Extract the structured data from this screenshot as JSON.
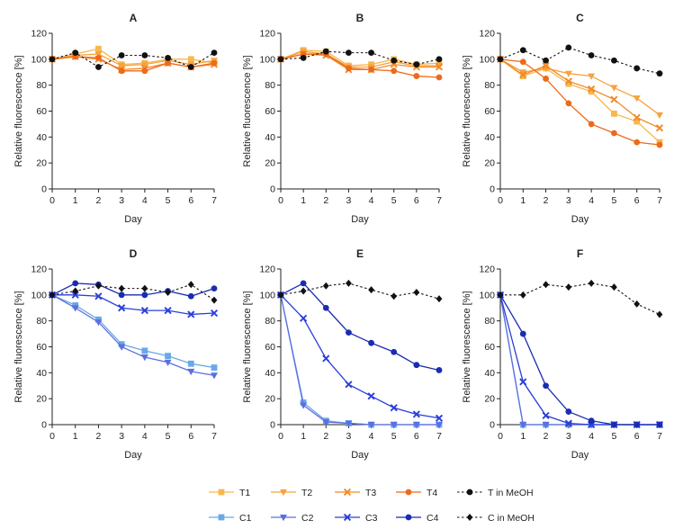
{
  "figure": {
    "xlabel": "Day",
    "ylabel": "Relative fluorescence [%]",
    "x_ticks": [
      "0",
      "1",
      "2",
      "3",
      "4",
      "5",
      "6",
      "7"
    ],
    "y_ticks": [
      "0",
      "20",
      "40",
      "60",
      "80",
      "100",
      "120"
    ]
  },
  "legend": {
    "placement": "bottom-center",
    "items": [
      {
        "key": "T1",
        "label": "T1",
        "color": "#f7b84d",
        "marker": "square",
        "dash": false
      },
      {
        "key": "T2",
        "label": "T2",
        "color": "#f7a23c",
        "marker": "triangle-down",
        "dash": false
      },
      {
        "key": "T3",
        "label": "T3",
        "color": "#f2892a",
        "marker": "x",
        "dash": false
      },
      {
        "key": "T4",
        "label": "T4",
        "color": "#ee6a1b",
        "marker": "circle",
        "dash": false
      },
      {
        "key": "TM",
        "label": "T in MeOH",
        "color": "#111111",
        "marker": "circle",
        "dash": true
      },
      {
        "key": "C1",
        "label": "C1",
        "color": "#6aa8e8",
        "marker": "square",
        "dash": false
      },
      {
        "key": "C2",
        "label": "C2",
        "color": "#5b6fe0",
        "marker": "triangle-down",
        "dash": false
      },
      {
        "key": "C3",
        "label": "C3",
        "color": "#2a3fd8",
        "marker": "x",
        "dash": false
      },
      {
        "key": "C4",
        "label": "C4",
        "color": "#1a2cb0",
        "marker": "circle",
        "dash": false
      },
      {
        "key": "CM",
        "label": "C in MeOH",
        "color": "#111111",
        "marker": "diamond",
        "dash": true
      }
    ]
  },
  "chart_data": [
    {
      "type": "line",
      "title": "A",
      "xlabel": "Day",
      "ylabel": "Relative fluorescence [%]",
      "xlim": [
        0,
        7
      ],
      "ylim": [
        0,
        120
      ],
      "grid": false,
      "x": [
        0,
        1,
        2,
        3,
        4,
        5,
        6,
        7
      ],
      "series": [
        {
          "name": "T1",
          "values": [
            100,
            104,
            108,
            96,
            97,
            100,
            100,
            97
          ]
        },
        {
          "name": "T2",
          "values": [
            100,
            103,
            104,
            95,
            96,
            99,
            96,
            99
          ]
        },
        {
          "name": "T3",
          "values": [
            100,
            102,
            100,
            92,
            93,
            97,
            94,
            96
          ]
        },
        {
          "name": "T4",
          "values": [
            100,
            102,
            101,
            91,
            91,
            97,
            94,
            97
          ]
        },
        {
          "name": "T in MeOH",
          "values": [
            100,
            105,
            94,
            103,
            103,
            101,
            94,
            105
          ]
        }
      ]
    },
    {
      "type": "line",
      "title": "B",
      "xlabel": "Day",
      "ylabel": "Relative fluorescence [%]",
      "xlim": [
        0,
        7
      ],
      "ylim": [
        0,
        120
      ],
      "grid": false,
      "x": [
        0,
        1,
        2,
        3,
        4,
        5,
        6,
        7
      ],
      "series": [
        {
          "name": "T1",
          "values": [
            100,
            107,
            106,
            95,
            96,
            100,
            96,
            97
          ]
        },
        {
          "name": "T2",
          "values": [
            100,
            106,
            104,
            94,
            94,
            98,
            95,
            95
          ]
        },
        {
          "name": "T3",
          "values": [
            100,
            104,
            103,
            92,
            92,
            96,
            94,
            94
          ]
        },
        {
          "name": "T4",
          "values": [
            100,
            104,
            104,
            93,
            92,
            91,
            87,
            86
          ]
        },
        {
          "name": "T in MeOH",
          "values": [
            100,
            101,
            106,
            105,
            105,
            99,
            96,
            100
          ]
        }
      ]
    },
    {
      "type": "line",
      "title": "C",
      "xlabel": "Day",
      "ylabel": "Relative fluorescence [%]",
      "xlim": [
        0,
        7
      ],
      "ylim": [
        0,
        120
      ],
      "grid": false,
      "x": [
        0,
        1,
        2,
        3,
        4,
        5,
        6,
        7
      ],
      "series": [
        {
          "name": "T1",
          "values": [
            100,
            87,
            93,
            81,
            75,
            58,
            52,
            36
          ]
        },
        {
          "name": "T2",
          "values": [
            100,
            90,
            93,
            89,
            87,
            78,
            70,
            57
          ]
        },
        {
          "name": "T3",
          "values": [
            100,
            88,
            95,
            83,
            77,
            69,
            55,
            47
          ]
        },
        {
          "name": "T4",
          "values": [
            100,
            98,
            85,
            66,
            50,
            43,
            36,
            34
          ]
        },
        {
          "name": "T in MeOH",
          "values": [
            100,
            107,
            99,
            109,
            103,
            99,
            93,
            89
          ]
        }
      ]
    },
    {
      "type": "line",
      "title": "D",
      "xlabel": "Day",
      "ylabel": "Relative fluorescence [%]",
      "xlim": [
        0,
        7
      ],
      "ylim": [
        0,
        120
      ],
      "grid": false,
      "x": [
        0,
        1,
        2,
        3,
        4,
        5,
        6,
        7
      ],
      "series": [
        {
          "name": "C1",
          "values": [
            100,
            92,
            81,
            62,
            57,
            53,
            47,
            44
          ]
        },
        {
          "name": "C2",
          "values": [
            100,
            90,
            79,
            60,
            52,
            48,
            41,
            38
          ]
        },
        {
          "name": "C3",
          "values": [
            100,
            100,
            99,
            90,
            88,
            88,
            85,
            86
          ]
        },
        {
          "name": "C4",
          "values": [
            100,
            109,
            108,
            100,
            100,
            103,
            99,
            105
          ]
        },
        {
          "name": "C in MeOH",
          "values": [
            100,
            103,
            107,
            105,
            105,
            102,
            108,
            96
          ]
        }
      ]
    },
    {
      "type": "line",
      "title": "E",
      "xlabel": "Day",
      "ylabel": "Relative fluorescence [%]",
      "xlim": [
        0,
        7
      ],
      "ylim": [
        0,
        120
      ],
      "grid": false,
      "x": [
        0,
        1,
        2,
        3,
        4,
        5,
        6,
        7
      ],
      "series": [
        {
          "name": "C1",
          "values": [
            100,
            17,
            3,
            1,
            0,
            0,
            0,
            0
          ]
        },
        {
          "name": "C2",
          "values": [
            100,
            15,
            2,
            1,
            0,
            0,
            0,
            0
          ]
        },
        {
          "name": "C3",
          "values": [
            100,
            82,
            51,
            31,
            22,
            13,
            8,
            5
          ]
        },
        {
          "name": "C4",
          "values": [
            100,
            109,
            90,
            71,
            63,
            56,
            46,
            42
          ]
        },
        {
          "name": "C in MeOH",
          "values": [
            100,
            103,
            107,
            109,
            104,
            99,
            102,
            97
          ]
        }
      ]
    },
    {
      "type": "line",
      "title": "F",
      "xlabel": "Day",
      "ylabel": "Relative fluorescence [%]",
      "xlim": [
        0,
        7
      ],
      "ylim": [
        0,
        120
      ],
      "grid": false,
      "x": [
        0,
        1,
        2,
        3,
        4,
        5,
        6,
        7
      ],
      "series": [
        {
          "name": "C1",
          "values": [
            100,
            0,
            0,
            0,
            0,
            0,
            0,
            0
          ]
        },
        {
          "name": "C2",
          "values": [
            100,
            0,
            0,
            0,
            0,
            0,
            0,
            0
          ]
        },
        {
          "name": "C3",
          "values": [
            100,
            33,
            7,
            1,
            0,
            0,
            0,
            0
          ]
        },
        {
          "name": "C4",
          "values": [
            100,
            70,
            30,
            10,
            3,
            0,
            0,
            0
          ]
        },
        {
          "name": "C in MeOH",
          "values": [
            100,
            100,
            108,
            106,
            109,
            106,
            93,
            85
          ]
        }
      ]
    }
  ]
}
